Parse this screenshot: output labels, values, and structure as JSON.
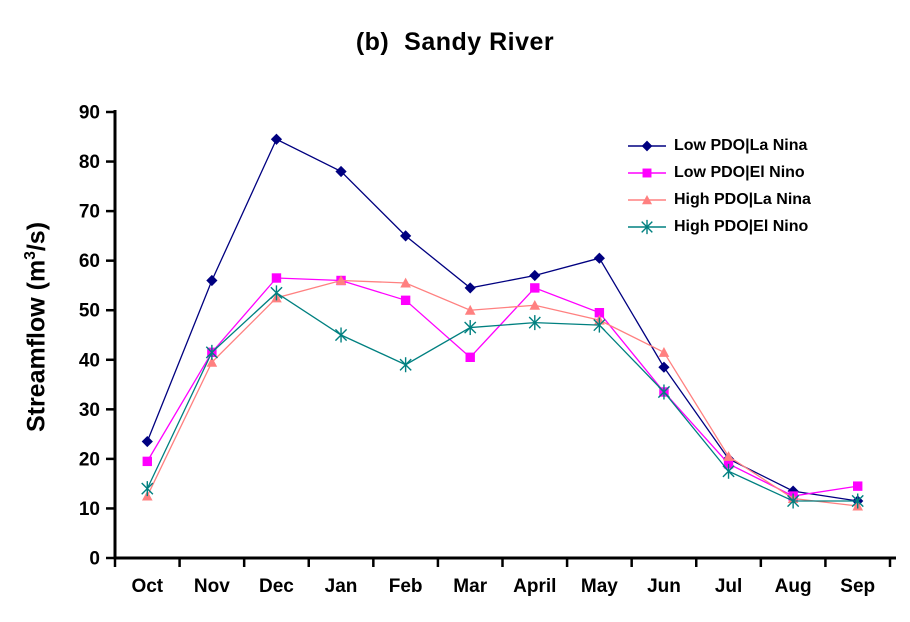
{
  "page": {
    "background": "#FFFFFF"
  },
  "chart_data": {
    "type": "line",
    "title": "(b)  Sandy River",
    "ylabel": {
      "pre": "Streamflow (m",
      "sup": "3",
      "post": "/s)"
    },
    "xlabel": "",
    "categories": [
      "Oct",
      "Nov",
      "Dec",
      "Jan",
      "Feb",
      "Mar",
      "April",
      "May",
      "Jun",
      "Jul",
      "Aug",
      "Sep"
    ],
    "ylim": [
      0,
      90
    ],
    "ytick_step": 10,
    "yticks": [
      0,
      10,
      20,
      30,
      40,
      50,
      60,
      70,
      80,
      90
    ],
    "grid": false,
    "legend_position": "inside-upper-right",
    "axis_color": "#000000",
    "series": [
      {
        "name": "Low PDO|La Nina",
        "color": "#000080",
        "marker": "diamond",
        "values": [
          23.5,
          56,
          84.5,
          78,
          65,
          54.5,
          57,
          60.5,
          38.5,
          20,
          13.5,
          11.5
        ]
      },
      {
        "name": "Low PDO|El Nino",
        "color": "#FF00FF",
        "marker": "square",
        "values": [
          19.5,
          41.5,
          56.5,
          56,
          52,
          40.5,
          54.5,
          49.5,
          33.5,
          19,
          12.5,
          14.5
        ]
      },
      {
        "name": "High PDO|La Nina",
        "color": "#FF8080",
        "marker": "triangle",
        "values": [
          12.5,
          39.5,
          52.5,
          56,
          55.5,
          50,
          51,
          48,
          41.5,
          20.5,
          12,
          10.5
        ]
      },
      {
        "name": "High PDO|El Nino",
        "color": "#008080",
        "marker": "star",
        "values": [
          14,
          41.5,
          53.5,
          45,
          39,
          46.5,
          47.5,
          47,
          33.5,
          17.5,
          11.5,
          11.5
        ]
      }
    ]
  }
}
